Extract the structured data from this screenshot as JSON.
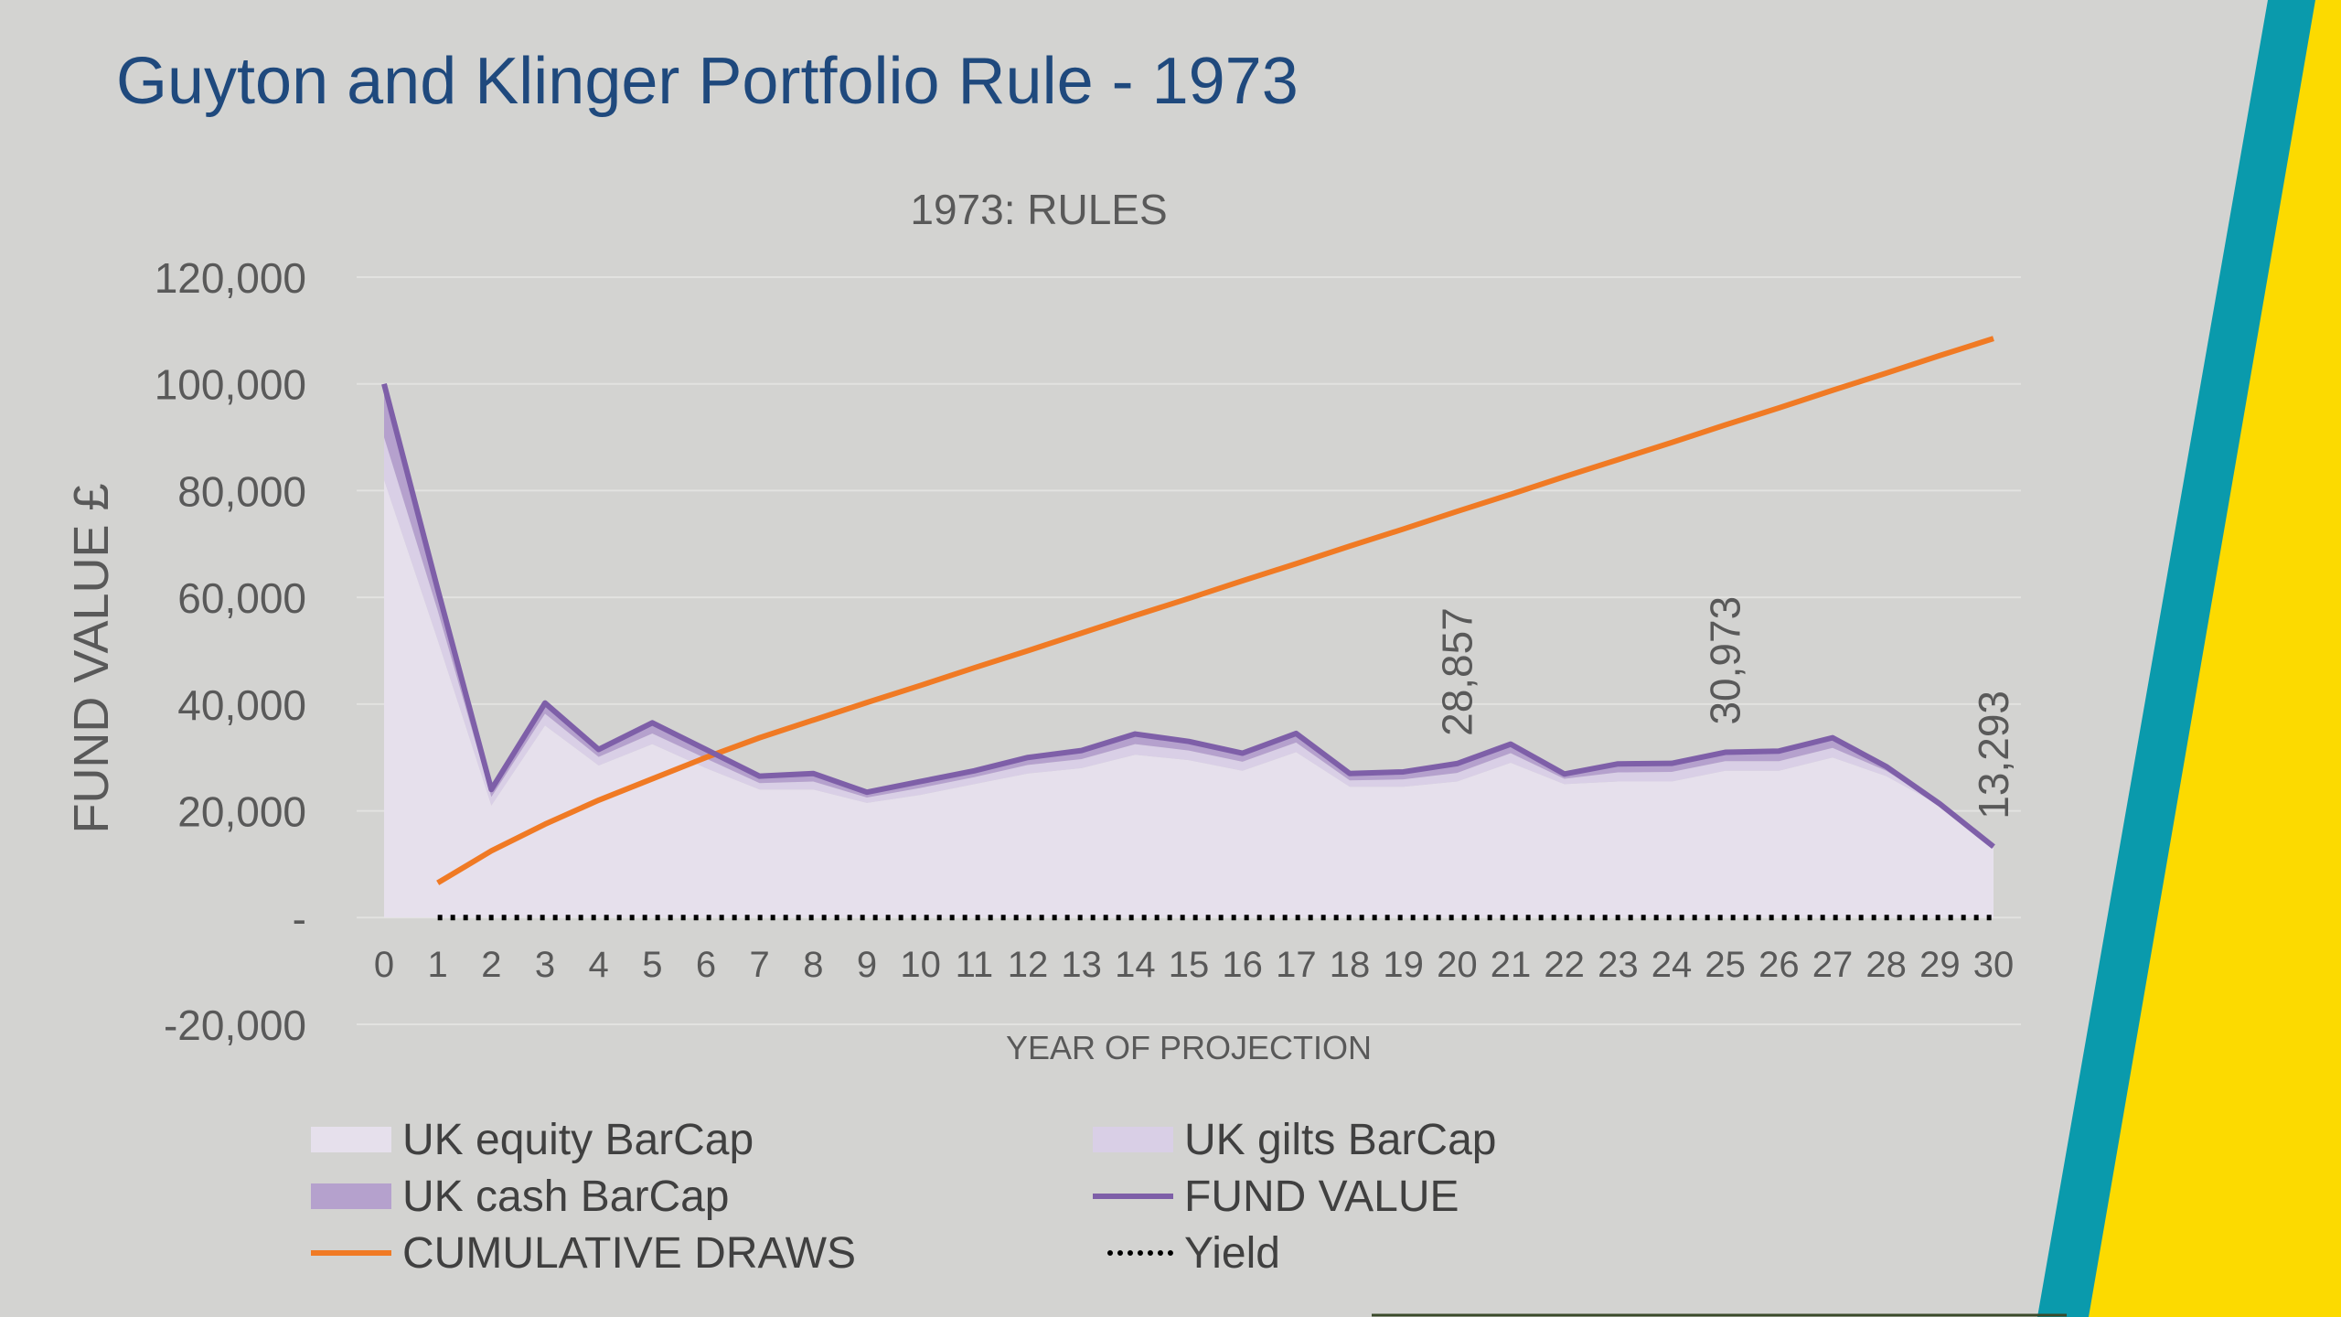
{
  "slide": {
    "title": "Guyton and Klinger Portfolio Rule - 1973"
  },
  "colors": {
    "background": "#d3d3d1",
    "title": "#1f497d",
    "equity": "#e6e0ec",
    "gilts": "#d9cfe6",
    "cash": "#b5a1cd",
    "fund_value": "#7e5fa8",
    "cumulative_draws": "#f07a24",
    "yield": "#000000",
    "teal_stripe": "#0a9aac",
    "yellow_band": "#fcda00"
  },
  "chart_data": {
    "type": "area",
    "title": "1973: RULES",
    "xlabel": "YEAR OF PROJECTION",
    "ylabel": "FUND VALUE £",
    "ylim": [
      -20000,
      120000
    ],
    "yticks": [
      -20000,
      0,
      20000,
      40000,
      60000,
      80000,
      100000,
      120000
    ],
    "ytick_labels": [
      "-20,000",
      "-",
      "20,000",
      "40,000",
      "60,000",
      "80,000",
      "100,000",
      "120,000"
    ],
    "grid": true,
    "legend_position": "bottom",
    "x": [
      0,
      1,
      2,
      3,
      4,
      5,
      6,
      7,
      8,
      9,
      10,
      11,
      12,
      13,
      14,
      15,
      16,
      17,
      18,
      19,
      20,
      21,
      22,
      23,
      24,
      25,
      26,
      27,
      28,
      29,
      30
    ],
    "x_labels": [
      "0",
      "1",
      "2",
      "3",
      "4",
      "5",
      "6",
      "7",
      "8",
      "9",
      "10",
      "11",
      "12",
      "13",
      "14",
      "15",
      "16",
      "17",
      "18",
      "19",
      "20",
      "21",
      "22",
      "23",
      "24",
      "25",
      "26",
      "27",
      "28",
      "29",
      "30"
    ],
    "series": [
      {
        "name": "UK equity BarCap",
        "kind": "stacked-area",
        "values": [
          82000,
          52000,
          21000,
          36000,
          28500,
          32500,
          28000,
          24000,
          24000,
          21500,
          23000,
          25000,
          27000,
          28000,
          30500,
          29500,
          27500,
          31000,
          24500,
          24500,
          25500,
          29000,
          25000,
          25500,
          25500,
          27500,
          27500,
          30000,
          26500,
          21000,
          13000
        ]
      },
      {
        "name": "UK gilts BarCap",
        "kind": "stacked-area",
        "values": [
          8000,
          5500,
          1600,
          2200,
          1600,
          2000,
          1800,
          1200,
          1500,
          1000,
          1300,
          1300,
          1600,
          1700,
          2000,
          1800,
          1700,
          1800,
          1200,
          1400,
          1600,
          1800,
          1000,
          1700,
          1800,
          1800,
          1800,
          1800,
          1000,
          200,
          100
        ]
      },
      {
        "name": "UK cash BarCap",
        "kind": "stacked-area",
        "values": [
          10000,
          4000,
          1400,
          2000,
          1400,
          2000,
          1700,
          1300,
          1500,
          1000,
          1200,
          1200,
          1400,
          1600,
          1900,
          1700,
          1600,
          1700,
          1300,
          1400,
          1757,
          1700,
          900,
          1600,
          1600,
          1673,
          1900,
          1900,
          800,
          100,
          193
        ]
      },
      {
        "name": "FUND VALUE",
        "kind": "line",
        "values": [
          100000,
          61500,
          24000,
          40200,
          31500,
          36500,
          31500,
          26500,
          27000,
          23500,
          25500,
          27500,
          30000,
          31300,
          34400,
          33000,
          30800,
          34500,
          27000,
          27300,
          28857,
          32500,
          26900,
          28800,
          28900,
          30973,
          31200,
          33700,
          28300,
          21300,
          13293
        ]
      },
      {
        "name": "CUMULATIVE DRAWS",
        "kind": "line",
        "values": [
          null,
          6500,
          12500,
          17500,
          22000,
          26000,
          30000,
          33700,
          37000,
          40300,
          43500,
          46800,
          50000,
          53300,
          56600,
          59800,
          63100,
          66300,
          69600,
          72800,
          76100,
          79300,
          82600,
          85800,
          89000,
          92300,
          95500,
          98800,
          102000,
          105300,
          108500
        ]
      },
      {
        "name": "Yield",
        "kind": "dotted-line",
        "values": [
          null,
          0,
          0,
          0,
          0,
          0,
          0,
          0,
          0,
          0,
          0,
          0,
          0,
          0,
          0,
          0,
          0,
          0,
          0,
          0,
          0,
          0,
          0,
          0,
          0,
          0,
          0,
          0,
          0,
          0,
          0
        ]
      }
    ],
    "annotations": [
      {
        "x": 20,
        "y": 28857,
        "text": "28,857"
      },
      {
        "x": 25,
        "y": 30973,
        "text": "30,973"
      },
      {
        "x": 30,
        "y": 13293,
        "text": "13,293"
      }
    ]
  }
}
